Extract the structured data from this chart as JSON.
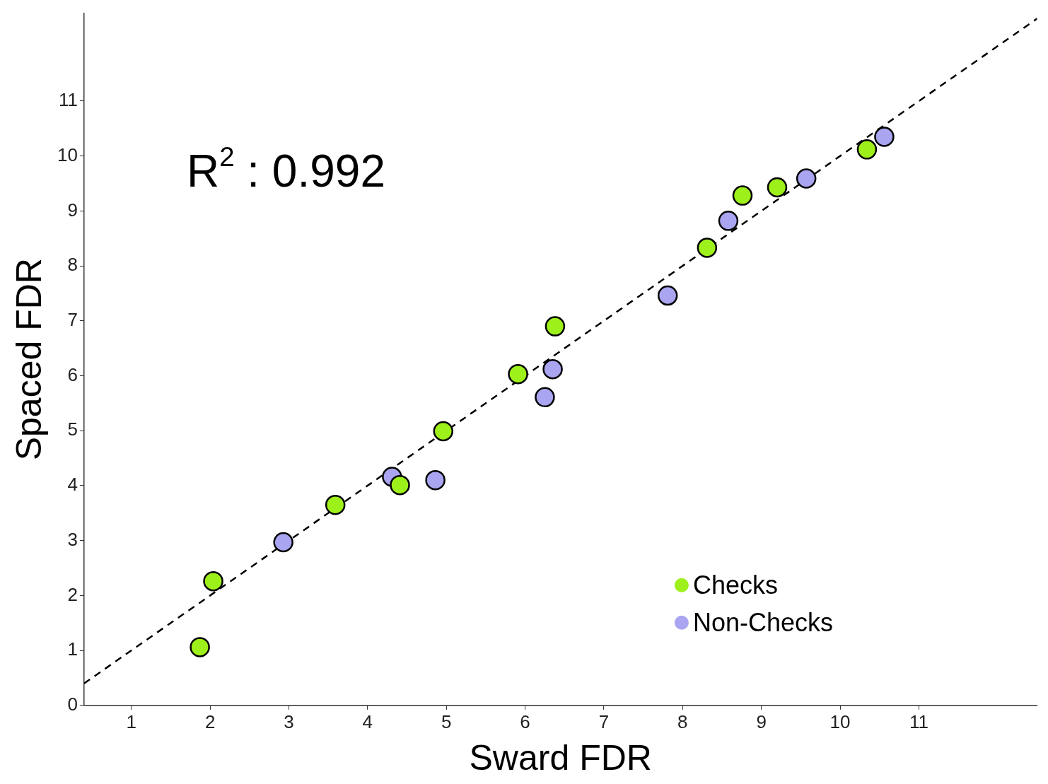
{
  "chart_data": {
    "type": "scatter",
    "xlabel": "Sward FDR",
    "ylabel": "Spaced FDR",
    "annotations": [
      "R$^{2}$ : 0.992"
    ],
    "xlim": [
      0.4,
      12.5
    ],
    "ylim": [
      0,
      12.6
    ],
    "xticks": [
      1,
      2,
      3,
      4,
      5,
      6,
      7,
      8,
      9,
      10,
      11
    ],
    "yticks": [
      0,
      1,
      2,
      3,
      4,
      5,
      6,
      7,
      8,
      9,
      10,
      11
    ],
    "grid": false,
    "legend": "bottom right",
    "marker": "circle",
    "series": [
      {
        "name": "Checks",
        "color": "#9ef01a",
        "x": [
          1.87,
          2.04,
          3.59,
          4.41,
          4.96,
          5.91,
          6.38,
          8.31,
          8.76,
          9.2,
          10.34
        ],
        "values": [
          1.06,
          2.26,
          3.65,
          4.01,
          4.99,
          6.03,
          6.9,
          8.33,
          9.28,
          9.43,
          10.12
        ]
      },
      {
        "name": "Non-Checks",
        "color": "#a9a5f0",
        "x": [
          2.93,
          4.31,
          4.86,
          6.25,
          6.35,
          7.81,
          8.58,
          9.57,
          10.56
        ],
        "values": [
          2.97,
          4.16,
          4.1,
          5.61,
          6.12,
          7.46,
          8.82,
          9.59,
          10.35
        ]
      },
      {
        "type": "line",
        "color": "#000000",
        "line_style": "dashed",
        "marker": "none",
        "x": [
          0.4,
          12.5
        ],
        "values": [
          0.4,
          12.5
        ]
      }
    ]
  }
}
